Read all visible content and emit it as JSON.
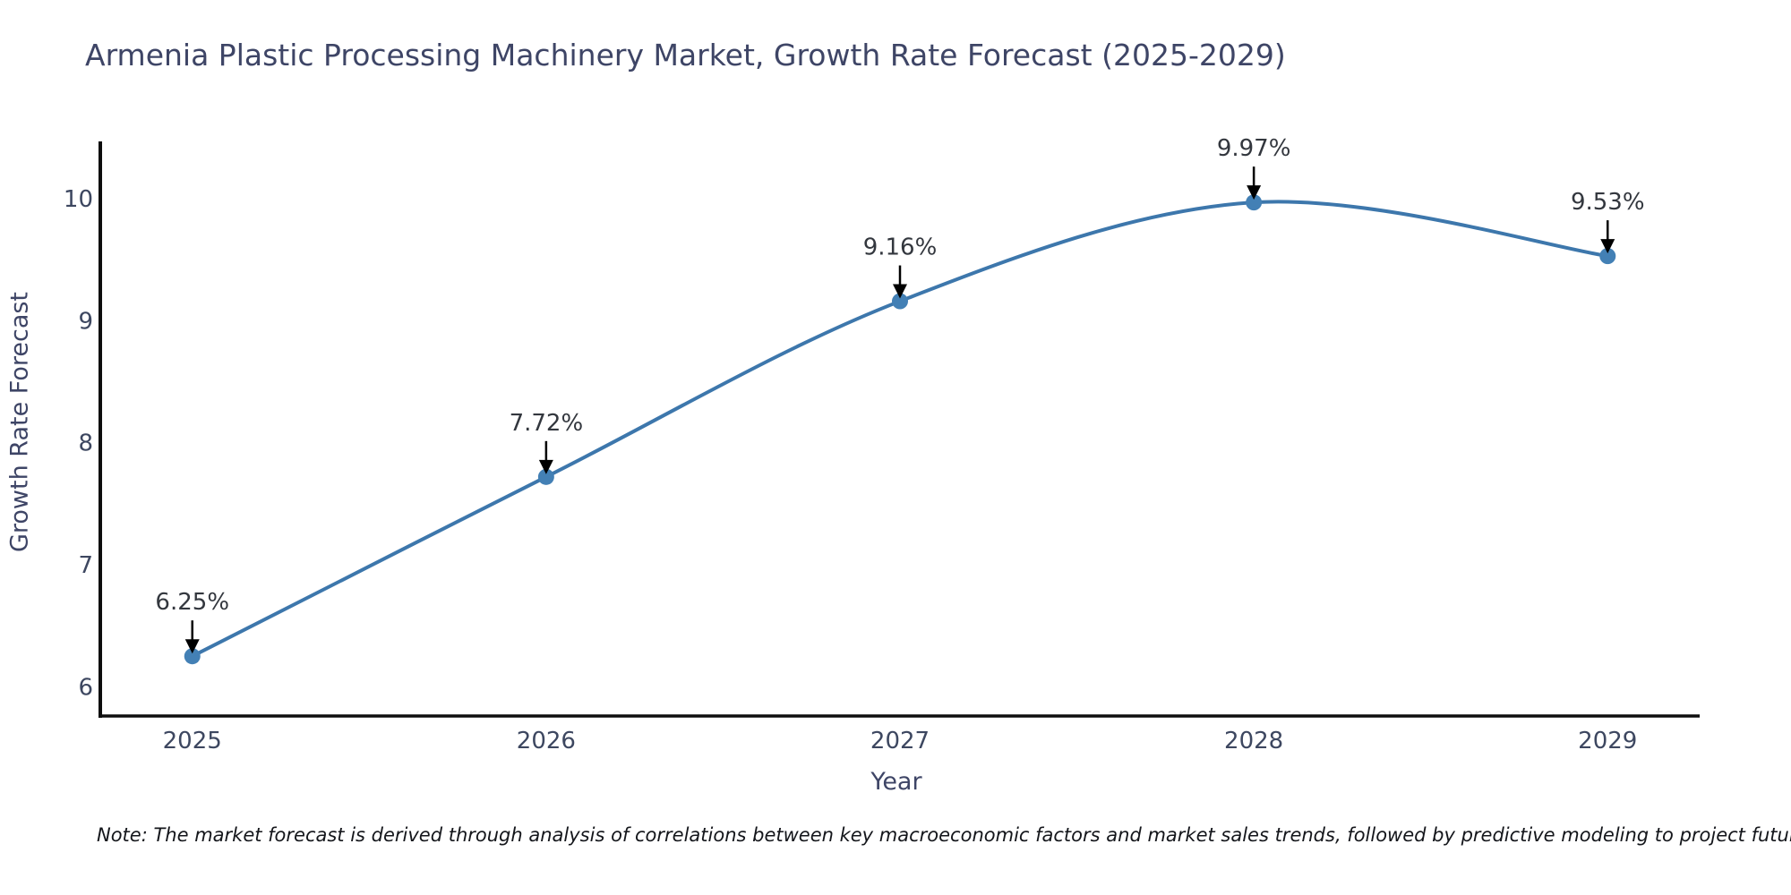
{
  "title": "Armenia Plastic Processing Machinery Market, Growth Rate Forecast (2025-2029)",
  "note": "Note: The market forecast is derived through analysis of correlations between key macroeconomic factors and market sales trends, followed by predictive modeling to project future sales",
  "chart_data": {
    "type": "line",
    "title": "Armenia Plastic Processing Machinery Market, Growth Rate Forecast (2025-2029)",
    "xlabel": "Year",
    "ylabel": "Growth Rate Forecast",
    "x": [
      2025,
      2026,
      2027,
      2028,
      2029
    ],
    "values": [
      6.25,
      7.72,
      9.16,
      9.97,
      9.53
    ],
    "point_labels": [
      "6.25%",
      "7.72%",
      "9.16%",
      "9.97%",
      "9.53%"
    ],
    "xticks": [
      "2025",
      "2026",
      "2027",
      "2028",
      "2029"
    ],
    "yticks": [
      6,
      7,
      8,
      9,
      10
    ],
    "xlim": [
      2024.74,
      2029.26
    ],
    "ylim": [
      5.76,
      10.47
    ],
    "grid": false,
    "legend": "none",
    "smooth": true,
    "colors": {
      "line": "#3d77ac",
      "marker": "#4380b5",
      "axis": "#0d0d0d",
      "tick_label": "#3d4760",
      "annotation_text": "#33373e",
      "annotation_arrow": "#000000"
    }
  }
}
